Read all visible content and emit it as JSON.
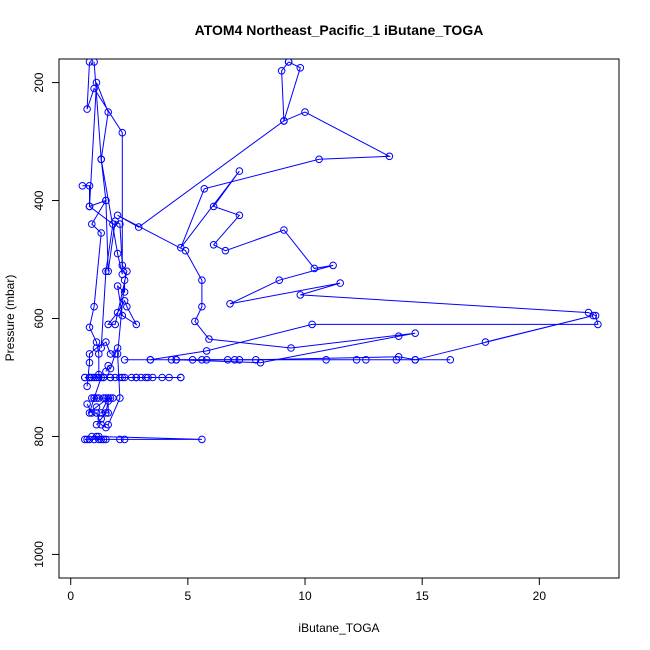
{
  "chart_data": {
    "type": "line",
    "title": "ATOM4 Northeast_Pacific_1 iButane_TOGA",
    "xlabel": "iButane_TOGA",
    "ylabel": "Pressure (mbar)",
    "xlim": [
      -0.5,
      23.4
    ],
    "ylim": [
      1040,
      160
    ],
    "y_inverted": true,
    "x_ticks": [
      0,
      5,
      10,
      15,
      20
    ],
    "y_ticks": [
      200,
      400,
      600,
      800,
      1000
    ],
    "grid": false,
    "legend": "none",
    "series_color": "#0000ff",
    "series": [
      {
        "x": [
          0.8,
          0.7,
          1.0,
          2.2,
          2.2,
          2.0,
          1.3,
          1.6,
          1.1,
          0.8,
          1.5,
          0.9,
          1.3,
          1.0,
          0.8,
          1.1,
          1.2,
          1.2,
          1.3,
          1.0,
          0.8,
          1.1,
          1.6,
          1.3,
          1.6,
          1.6,
          1.5,
          1.3,
          1.1
        ],
        "y": [
          165,
          245,
          210,
          285,
          525,
          490,
          330,
          250,
          200,
          410,
          400,
          440,
          455,
          580,
          615,
          640,
          660,
          695,
          700,
          735,
          760,
          750,
          735,
          760,
          760,
          740,
          760,
          770,
          780
        ]
      },
      {
        "x": [
          1.0,
          1.3,
          1.5,
          1.6,
          1.9,
          2.1,
          2.2,
          2.4,
          1.9,
          1.6,
          2.0,
          2.3,
          2.4,
          2.8,
          2.2,
          2.0,
          2.3,
          2.3,
          2.0,
          2.1,
          1.6
        ],
        "y": [
          165,
          330,
          400,
          520,
          435,
          440,
          510,
          520,
          610,
          610,
          590,
          570,
          580,
          610,
          595,
          545,
          555,
          535,
          660,
          735,
          780
        ]
      },
      {
        "x": [
          9.3,
          9.8,
          9.1,
          10.0,
          13.6,
          10.6,
          5.7,
          4.7,
          7.2,
          6.1,
          7.2,
          6.1,
          6.6,
          9.1,
          10.4,
          11.2,
          8.9,
          6.8,
          11.5,
          9.8,
          22.1,
          22.4,
          22.5,
          10.3,
          5.8,
          3.4
        ],
        "y": [
          165,
          175,
          265,
          250,
          325,
          330,
          380,
          480,
          350,
          410,
          425,
          475,
          485,
          450,
          515,
          510,
          535,
          575,
          540,
          560,
          590,
          595,
          610,
          610,
          655,
          670
        ]
      },
      {
        "x": [
          9.3,
          9.0,
          9.1,
          2.9,
          2.0,
          4.9,
          5.6,
          5.6,
          5.3,
          5.9,
          9.4,
          14.7,
          14.0,
          8.1,
          4.5
        ],
        "y": [
          165,
          180,
          265,
          445,
          425,
          485,
          535,
          580,
          605,
          635,
          650,
          625,
          630,
          675,
          670
        ]
      },
      {
        "x": [
          2.3,
          3.4,
          4.5,
          5.2,
          5.6,
          5.8,
          6.7,
          7.0,
          7.2,
          10.9,
          12.2,
          12.6,
          13.9,
          14.7,
          16.2
        ],
        "y": [
          670,
          670,
          670,
          670,
          670,
          670,
          670,
          670,
          670,
          670,
          670,
          670,
          670,
          670,
          670
        ]
      },
      {
        "x": [
          17.7,
          22.3,
          14.7,
          14.0,
          7.9,
          4.3
        ],
        "y": [
          640,
          595,
          670,
          665,
          670,
          670
        ]
      },
      {
        "x": [
          0.6,
          0.6,
          0.8,
          0.8,
          0.9,
          1.0,
          1.2,
          1.4,
          1.7,
          1.9,
          2.1,
          2.3,
          2.6,
          2.8,
          3.0,
          3.2,
          3.5,
          3.9,
          4.2,
          4.7,
          4.7,
          3.3,
          2.8,
          2.2,
          1.7,
          1.4,
          1.1,
          0.8
        ],
        "y": [
          700,
          700,
          700,
          700,
          700,
          700,
          700,
          700,
          700,
          700,
          700,
          700,
          700,
          700,
          700,
          700,
          700,
          700,
          700,
          700,
          700,
          700,
          700,
          700,
          700,
          700,
          700,
          700
        ]
      },
      {
        "x": [
          0.6,
          0.7,
          0.8,
          1.0,
          1.1,
          1.2,
          1.3,
          1.4,
          1.5,
          2.1,
          2.3,
          5.6,
          1.2,
          0.9
        ],
        "y": [
          805,
          805,
          805,
          805,
          800,
          805,
          805,
          805,
          805,
          805,
          805,
          805,
          800,
          800
        ]
      },
      {
        "x": [
          0.9,
          1.0,
          1.1,
          1.2,
          1.4,
          1.5,
          1.6,
          1.7,
          1.8
        ],
        "y": [
          735,
          735,
          735,
          735,
          735,
          735,
          735,
          735,
          735
        ]
      },
      {
        "x": [
          1.5,
          1.6,
          1.7,
          1.9,
          2.0
        ],
        "y": [
          690,
          680,
          685,
          660,
          650
        ]
      },
      {
        "x": [
          0.7,
          0.8,
          0.8,
          1.1,
          1.5,
          1.7
        ],
        "y": [
          715,
          675,
          660,
          650,
          640,
          660
        ]
      },
      {
        "x": [
          0.5,
          0.8,
          0.8,
          1.8,
          1.5,
          1.3
        ],
        "y": [
          375,
          375,
          410,
          440,
          520,
          650
        ]
      },
      {
        "x": [
          0.7,
          0.9,
          1.1,
          1.3,
          1.5
        ],
        "y": [
          745,
          760,
          760,
          780,
          785
        ]
      }
    ]
  }
}
